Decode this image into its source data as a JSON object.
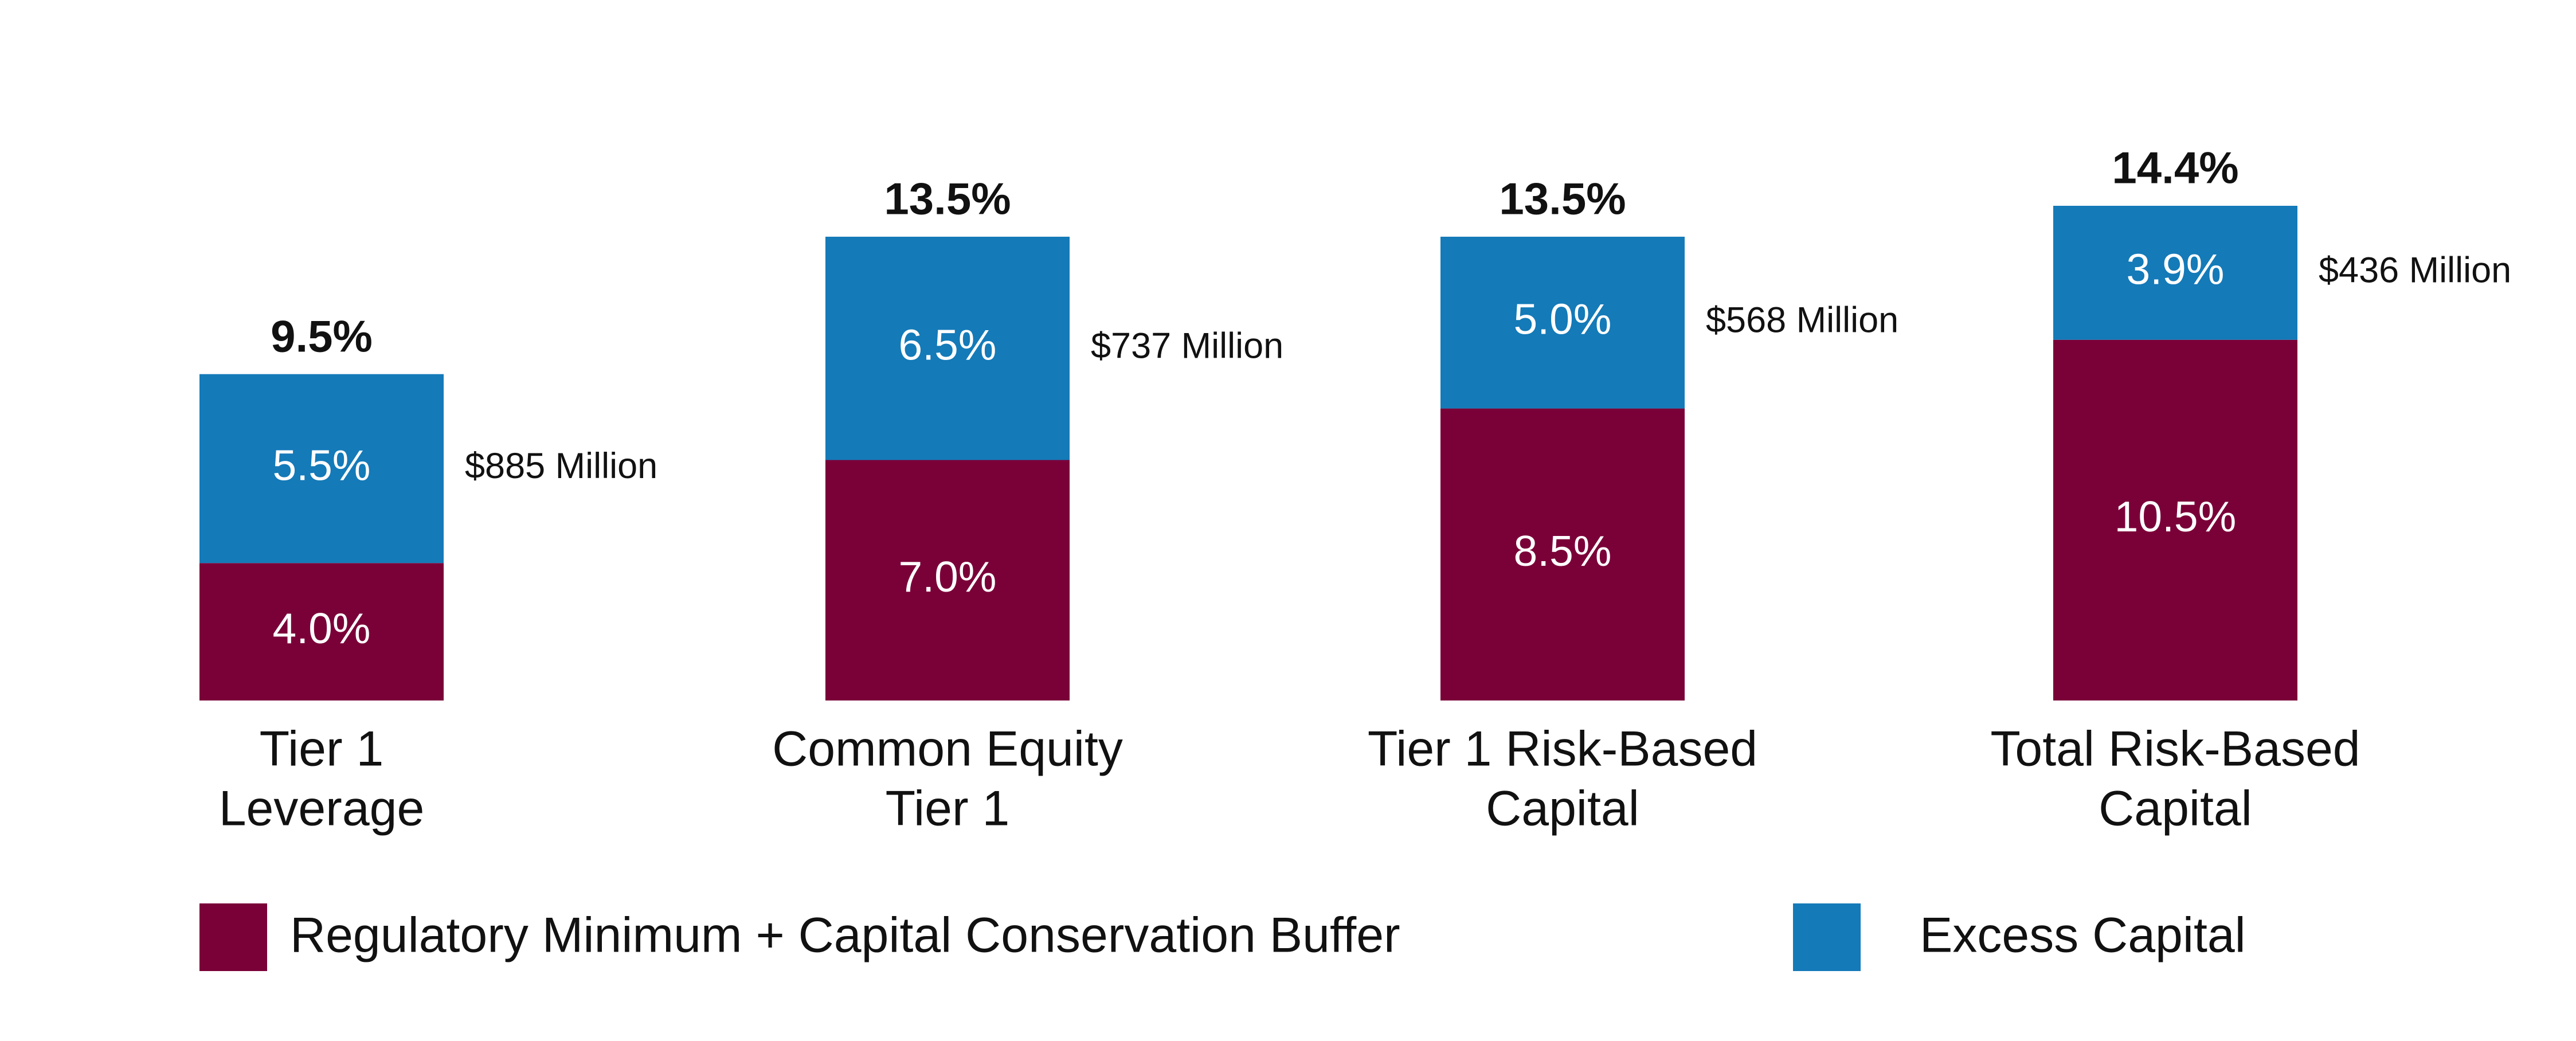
{
  "chart_data": {
    "type": "stacked-bar",
    "categories": [
      [
        "Tier 1",
        "Leverage"
      ],
      [
        "Common Equity",
        "Tier 1"
      ],
      [
        "Tier 1 Risk-Based",
        "Capital"
      ],
      [
        "Total Risk-Based",
        "Capital"
      ]
    ],
    "series": [
      {
        "name": "Regulatory Minimum + Capital Conservation Buffer",
        "color": "#7a0038",
        "values": [
          4.0,
          7.0,
          8.5,
          10.5
        ],
        "value_labels": [
          "4.0%",
          "7.0%",
          "8.5%",
          "10.5%"
        ]
      },
      {
        "name": "Excess Capital",
        "color": "#147ab8",
        "values": [
          5.5,
          6.5,
          5.0,
          3.9
        ],
        "value_labels": [
          "5.5%",
          "6.5%",
          "5.0%",
          "3.9%"
        ]
      }
    ],
    "totals": [
      9.5,
      13.5,
      13.5,
      14.4
    ],
    "total_labels": [
      "9.5%",
      "13.5%",
      "13.5%",
      "14.4%"
    ],
    "annotations": [
      "$885 Million",
      "$737 Million",
      "$568 Million",
      "$436 Million"
    ]
  }
}
